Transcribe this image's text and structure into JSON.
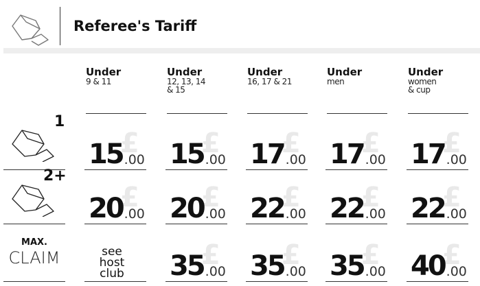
{
  "header": {
    "title": "Referee's Tariff"
  },
  "columns": [
    {
      "label": "Under",
      "sub": [
        "9 & 11"
      ]
    },
    {
      "label": "Under",
      "sub": [
        "12, 13, 14",
        "& 15"
      ]
    },
    {
      "label": "Under",
      "sub": [
        "16, 17 & 21"
      ]
    },
    {
      "label": "Under",
      "sub": [
        "men"
      ]
    },
    {
      "label": "Under",
      "sub": [
        "women",
        "& cup"
      ]
    }
  ],
  "rows": [
    {
      "label": "1",
      "cells": [
        {
          "currency": "£",
          "whole": "15",
          "pence": ".00"
        },
        {
          "currency": "£",
          "whole": "15",
          "pence": ".00"
        },
        {
          "currency": "£",
          "whole": "17",
          "pence": ".00"
        },
        {
          "currency": "£",
          "whole": "17",
          "pence": ".00"
        },
        {
          "currency": "£",
          "whole": "17",
          "pence": ".00"
        }
      ]
    },
    {
      "label": "2+",
      "cells": [
        {
          "currency": "£",
          "whole": "20",
          "pence": ".00"
        },
        {
          "currency": "£",
          "whole": "20",
          "pence": ".00"
        },
        {
          "currency": "£",
          "whole": "22",
          "pence": ".00"
        },
        {
          "currency": "£",
          "whole": "22",
          "pence": ".00"
        },
        {
          "currency": "£",
          "whole": "22",
          "pence": ".00"
        }
      ]
    },
    {
      "label_top": "MAX.",
      "label": "CLAIM",
      "cells": [
        {
          "text": [
            "see",
            "host",
            "club"
          ]
        },
        {
          "currency": "£",
          "whole": "35",
          "pence": ".00"
        },
        {
          "currency": "£",
          "whole": "35",
          "pence": ".00"
        },
        {
          "currency": "£",
          "whole": "35",
          "pence": ".00"
        },
        {
          "currency": "£",
          "whole": "40",
          "pence": ".00"
        }
      ]
    }
  ]
}
